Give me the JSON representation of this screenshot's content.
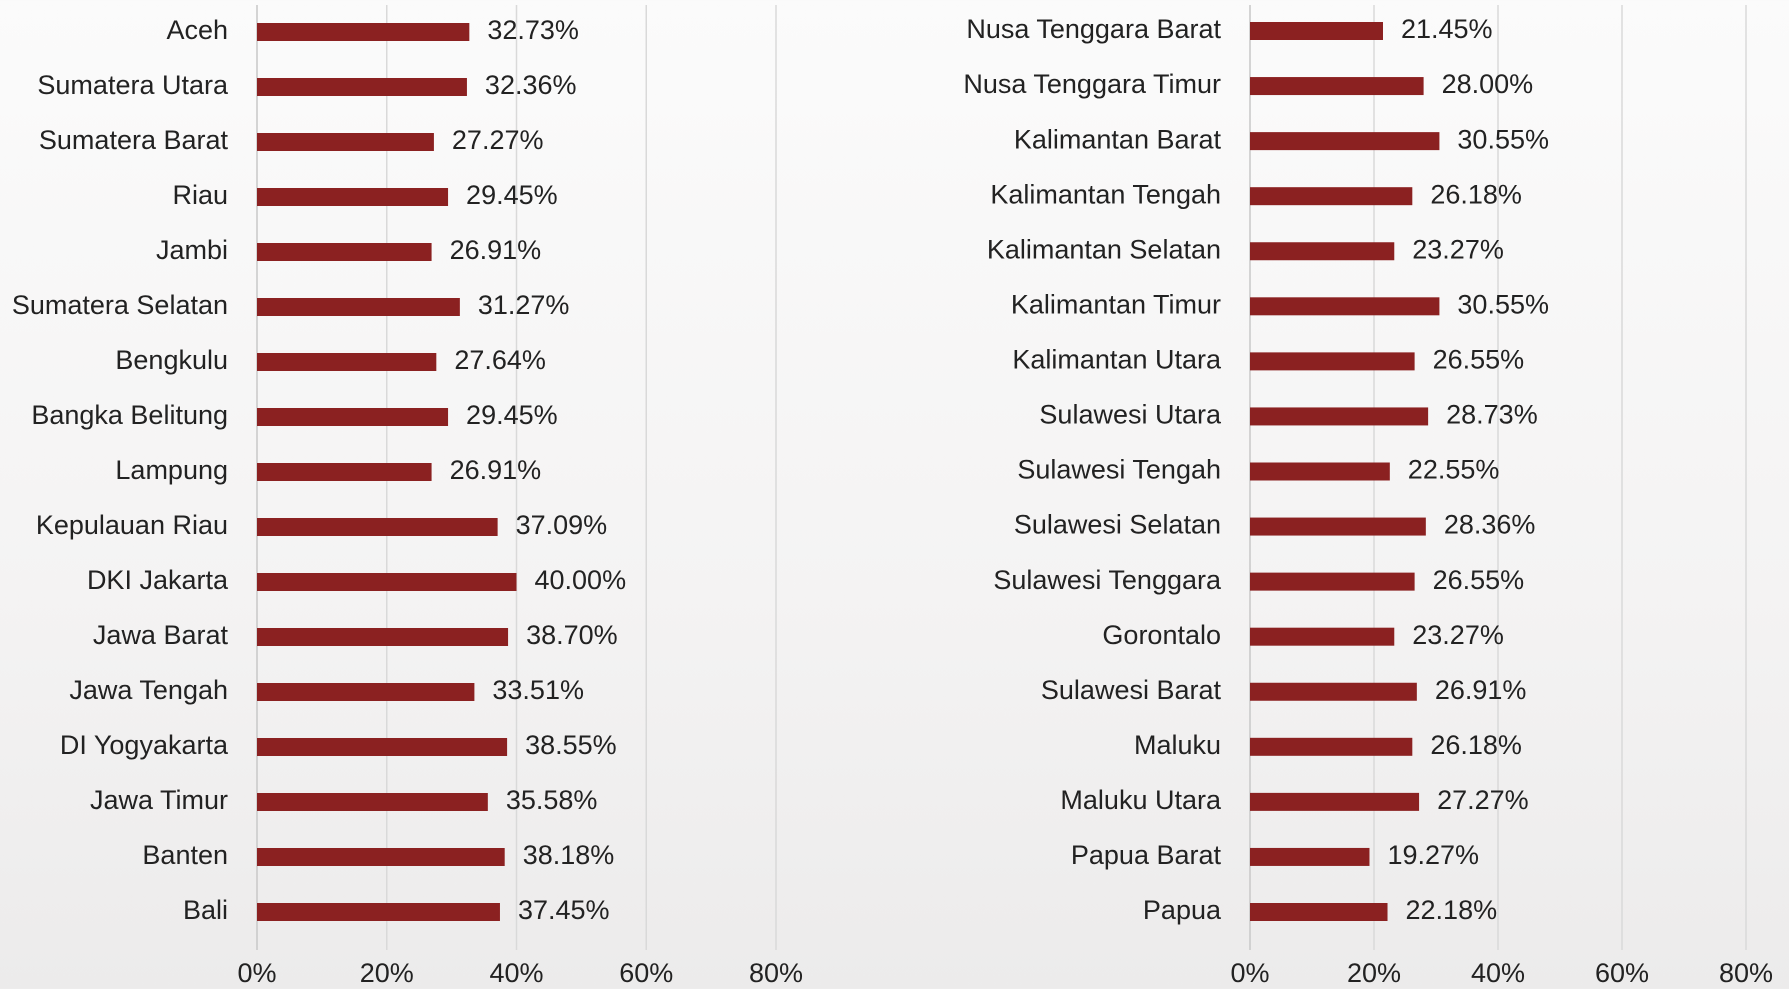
{
  "chart_data": [
    {
      "type": "bar",
      "orientation": "horizontal",
      "color": "#8b2121",
      "grid": true,
      "categories": [
        "Aceh",
        "Sumatera Utara",
        "Sumatera Barat",
        "Riau",
        "Jambi",
        "Sumatera Selatan",
        "Bengkulu",
        "Bangka Belitung",
        "Lampung",
        "Kepulauan Riau",
        "DKI Jakarta",
        "Jawa Barat",
        "Jawa Tengah",
        "DI Yogyakarta",
        "Jawa Timur",
        "Banten",
        "Bali"
      ],
      "values": [
        32.73,
        32.36,
        27.27,
        29.45,
        26.91,
        31.27,
        27.64,
        29.45,
        26.91,
        37.09,
        40.0,
        38.7,
        33.51,
        38.55,
        35.58,
        38.18,
        37.45
      ],
      "value_labels": [
        "32.73%",
        "32.36%",
        "27.27%",
        "29.45%",
        "26.91%",
        "31.27%",
        "27.64%",
        "29.45%",
        "26.91%",
        "37.09%",
        "40.00%",
        "38.70%",
        "33.51%",
        "38.55%",
        "35.58%",
        "38.18%",
        "37.45%"
      ],
      "xlim": [
        0,
        80
      ],
      "xticks": [
        {
          "value": 0,
          "label": "0%"
        },
        {
          "value": 20,
          "label": "20%"
        },
        {
          "value": 40,
          "label": "40%"
        },
        {
          "value": 60,
          "label": "60%"
        },
        {
          "value": 80,
          "label": "80%"
        }
      ]
    },
    {
      "type": "bar",
      "orientation": "horizontal",
      "color": "#8b2121",
      "grid": true,
      "categories": [
        "Nusa Tenggara Barat",
        "Nusa Tenggara Timur",
        "Kalimantan Barat",
        "Kalimantan Tengah",
        "Kalimantan Selatan",
        "Kalimantan Timur",
        "Kalimantan Utara",
        "Sulawesi Utara",
        "Sulawesi Tengah",
        "Sulawesi Selatan",
        "Sulawesi Tenggara",
        "Gorontalo",
        "Sulawesi Barat",
        "Maluku",
        "Maluku Utara",
        "Papua Barat",
        "Papua"
      ],
      "values": [
        21.45,
        28.0,
        30.55,
        26.18,
        23.27,
        30.55,
        26.55,
        28.73,
        22.55,
        28.36,
        26.55,
        23.27,
        26.91,
        26.18,
        27.27,
        19.27,
        22.18
      ],
      "value_labels": [
        "21.45%",
        "28.00%",
        "30.55%",
        "26.18%",
        "23.27%",
        "30.55%",
        "26.55%",
        "28.73%",
        "22.55%",
        "28.36%",
        "26.55%",
        "23.27%",
        "26.91%",
        "26.18%",
        "27.27%",
        "19.27%",
        "22.18%"
      ],
      "xlim": [
        0,
        80
      ],
      "xticks": [
        {
          "value": 0,
          "label": "0%"
        },
        {
          "value": 20,
          "label": "20%"
        },
        {
          "value": 40,
          "label": "40%"
        },
        {
          "value": 60,
          "label": "60%"
        },
        {
          "value": 80,
          "label": "80%"
        }
      ]
    }
  ]
}
